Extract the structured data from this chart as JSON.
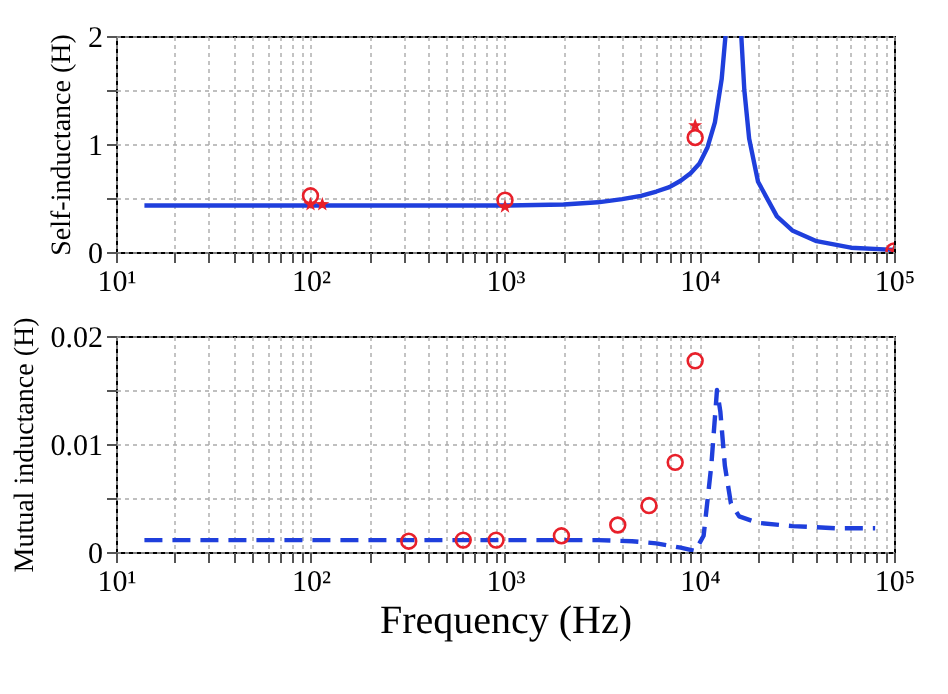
{
  "chart_data": [
    {
      "type": "line",
      "ylabel": "Self-inductance (H)",
      "log": "x",
      "grid": true,
      "xlim": [
        10,
        100000
      ],
      "xticks": [
        {
          "value": 10,
          "label": "10¹"
        },
        {
          "value": 20,
          "label": null
        },
        {
          "value": 30,
          "label": null
        },
        {
          "value": 40,
          "label": null
        },
        {
          "value": 50,
          "label": null
        },
        {
          "value": 60,
          "label": null
        },
        {
          "value": 70,
          "label": null
        },
        {
          "value": 80,
          "label": null
        },
        {
          "value": 90,
          "label": null
        },
        {
          "value": 100,
          "label": "10²"
        },
        {
          "value": 200,
          "label": null
        },
        {
          "value": 300,
          "label": null
        },
        {
          "value": 400,
          "label": null
        },
        {
          "value": 500,
          "label": null
        },
        {
          "value": 600,
          "label": null
        },
        {
          "value": 700,
          "label": null
        },
        {
          "value": 800,
          "label": null
        },
        {
          "value": 900,
          "label": null
        },
        {
          "value": 1000,
          "label": "10³"
        },
        {
          "value": 2000,
          "label": null
        },
        {
          "value": 3000,
          "label": null
        },
        {
          "value": 4000,
          "label": null
        },
        {
          "value": 5000,
          "label": null
        },
        {
          "value": 6000,
          "label": null
        },
        {
          "value": 7000,
          "label": null
        },
        {
          "value": 8000,
          "label": null
        },
        {
          "value": 9000,
          "label": null
        },
        {
          "value": 10000,
          "label": "10⁴"
        },
        {
          "value": 20000,
          "label": null
        },
        {
          "value": 30000,
          "label": null
        },
        {
          "value": 40000,
          "label": null
        },
        {
          "value": 50000,
          "label": null
        },
        {
          "value": 60000,
          "label": null
        },
        {
          "value": 70000,
          "label": null
        },
        {
          "value": 80000,
          "label": null
        },
        {
          "value": 90000,
          "label": null
        },
        {
          "value": 100000,
          "label": "10⁵"
        }
      ],
      "ylim": [
        0,
        2
      ],
      "yticks": [
        0,
        {
          "value": 0.5,
          "label": null
        },
        1,
        {
          "value": 1.5,
          "label": null
        },
        2
      ],
      "series": [
        {
          "color": "#1f3fdc",
          "line_style": "solid",
          "x": [
            14,
            100,
            500,
            1000,
            2000,
            3000,
            4000,
            5000,
            6000,
            7000,
            8000,
            9000,
            10000,
            11000,
            12000,
            13000,
            13600,
            15000,
            16400,
            17000,
            18000,
            20000,
            25000,
            30000,
            40000,
            60000,
            100000
          ],
          "values": [
            0.43,
            0.43,
            0.43,
            0.43,
            0.44,
            0.46,
            0.49,
            0.52,
            0.56,
            0.6,
            0.66,
            0.73,
            0.82,
            0.97,
            1.2,
            1.6,
            2,
            null,
            2,
            1.5,
            1.05,
            0.65,
            0.33,
            0.2,
            0.1,
            0.04,
            0.02
          ]
        },
        {
          "type": "scatter",
          "marker": "circle",
          "color": "#e8202a",
          "x": [
            100,
            1000,
            9500,
            100000
          ],
          "values": [
            0.52,
            0.48,
            1.06,
            0.01
          ]
        },
        {
          "type": "scatter",
          "marker": "star",
          "color": "#e8202a",
          "x": [
            100,
            115,
            1000,
            9500,
            100000
          ],
          "values": [
            0.44,
            0.44,
            0.42,
            1.17,
            0.01
          ]
        }
      ]
    },
    {
      "type": "line",
      "xlabel": "Frequency (Hz)",
      "ylabel": "Mutual inductance (H)",
      "log": "x",
      "grid": true,
      "xlim": [
        10,
        100000
      ],
      "xticks": [
        {
          "value": 10,
          "label": "10¹"
        },
        {
          "value": 20,
          "label": null
        },
        {
          "value": 30,
          "label": null
        },
        {
          "value": 40,
          "label": null
        },
        {
          "value": 50,
          "label": null
        },
        {
          "value": 60,
          "label": null
        },
        {
          "value": 70,
          "label": null
        },
        {
          "value": 80,
          "label": null
        },
        {
          "value": 90,
          "label": null
        },
        {
          "value": 100,
          "label": "10²"
        },
        {
          "value": 200,
          "label": null
        },
        {
          "value": 300,
          "label": null
        },
        {
          "value": 400,
          "label": null
        },
        {
          "value": 500,
          "label": null
        },
        {
          "value": 600,
          "label": null
        },
        {
          "value": 700,
          "label": null
        },
        {
          "value": 800,
          "label": null
        },
        {
          "value": 900,
          "label": null
        },
        {
          "value": 1000,
          "label": "10³"
        },
        {
          "value": 2000,
          "label": null
        },
        {
          "value": 3000,
          "label": null
        },
        {
          "value": 4000,
          "label": null
        },
        {
          "value": 5000,
          "label": null
        },
        {
          "value": 6000,
          "label": null
        },
        {
          "value": 7000,
          "label": null
        },
        {
          "value": 8000,
          "label": null
        },
        {
          "value": 9000,
          "label": null
        },
        {
          "value": 10000,
          "label": "10⁴"
        },
        {
          "value": 20000,
          "label": null
        },
        {
          "value": 30000,
          "label": null
        },
        {
          "value": 40000,
          "label": null
        },
        {
          "value": 50000,
          "label": null
        },
        {
          "value": 60000,
          "label": null
        },
        {
          "value": 70000,
          "label": null
        },
        {
          "value": 80000,
          "label": null
        },
        {
          "value": 90000,
          "label": null
        },
        {
          "value": 100000,
          "label": "10⁵"
        }
      ],
      "ylim": [
        0,
        0.02
      ],
      "yticks": [
        0,
        {
          "value": 0.005,
          "label": null
        },
        0.01,
        {
          "value": 0.015,
          "label": null
        },
        0.02
      ],
      "series": [
        {
          "color": "#1f3fdc",
          "line_style": "dashed",
          "x": [
            14,
            100,
            1000,
            3000,
            4500,
            6000,
            8000,
            9500,
            10500,
            11500,
            12300,
            12800,
            13500,
            14500,
            16000,
            20000,
            30000,
            50000,
            80000
          ],
          "values": [
            0.0011,
            0.0011,
            0.0011,
            0.0011,
            0.001,
            0.0008,
            0.0004,
            0.0001,
            0.0015,
            0.008,
            0.015,
            0.013,
            0.008,
            0.0045,
            0.0033,
            0.0027,
            0.0024,
            0.0022,
            0.0022
          ]
        },
        {
          "type": "scatter",
          "marker": "circle",
          "color": "#e8202a",
          "x": [
            320,
            610,
            900,
            1950,
            3800,
            5500,
            7500,
            9500
          ],
          "values": [
            0.001,
            0.0011,
            0.0011,
            0.0015,
            0.0025,
            0.0043,
            0.0083,
            0.0177
          ]
        }
      ]
    }
  ]
}
